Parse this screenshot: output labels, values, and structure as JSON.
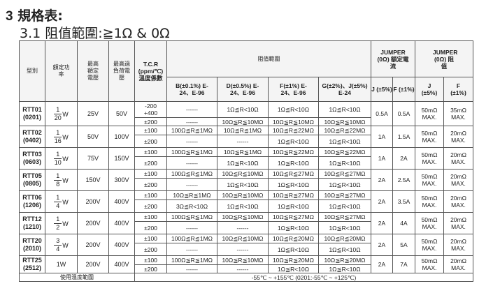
{
  "heading": {
    "number": "3",
    "title": "規格表:"
  },
  "subheading": "3.1 阻值範圍:≧1Ω & 0Ω",
  "table": {
    "headers": {
      "type": "型別",
      "rated_power": "額定功率",
      "max_rated_voltage": "最高額定電壓",
      "max_overload_voltage": "最高過負荷電壓",
      "tcr": "T.C.R (ppm/℃) 溫度係數",
      "resistance_range": "阻值範圍",
      "b": "B(±0.1%) E-24、E-96",
      "d": "D(±0.5%) E-24、E-96",
      "f": "F(±1%) E-24、E-96",
      "gj": "G(±2%)、J(±5%) E-24",
      "jumper_current": "JUMPER (0Ω) 額定電流",
      "jumper_resistance": "JUMPER (0Ω) 阻值",
      "jc_j": "J (±5%)",
      "jc_f": "F (±1%)",
      "jr_j": "J (±5%)",
      "jr_f": "F (±1%)"
    },
    "rows": [
      {
        "model": "RTT01",
        "size": "(0201)",
        "power_num": "1",
        "power_den": "20",
        "power_unit": "W",
        "v_rated": "25V",
        "v_overload": "50V",
        "sub": [
          {
            "tcr": "-200 +400",
            "b": "------",
            "d": "1Ω≦R<10Ω",
            "f": "1Ω≦R<10Ω",
            "g": "1Ω≦R<10Ω"
          },
          {
            "tcr": "±200",
            "b": "------",
            "d": "10Ω≦R≦10MΩ",
            "f": "10Ω≦R≦10MΩ",
            "g": "10Ω≦R≦10MΩ"
          }
        ],
        "jc_j": "0.5A",
        "jc_f": "0.5A",
        "jr_j": "50mΩ MAX.",
        "jr_f": "35mΩ MAX."
      },
      {
        "model": "RTT02",
        "size": "(0402)",
        "power_num": "1",
        "power_den": "16",
        "power_unit": "W",
        "v_rated": "50V",
        "v_overload": "100V",
        "sub": [
          {
            "tcr": "±100",
            "b": "100Ω≦R≦1MΩ",
            "d": "10Ω≦R≦1MΩ",
            "f": "10Ω≦R≦22MΩ",
            "g": "10Ω≦R≦22MΩ"
          },
          {
            "tcr": "±200",
            "b": "------",
            "d": "------",
            "f": "1Ω≦R<10Ω",
            "g": "1Ω≦R<10Ω"
          }
        ],
        "jc_j": "1A",
        "jc_f": "1.5A",
        "jr_j": "50mΩ MAX.",
        "jr_f": "20mΩ MAX."
      },
      {
        "model": "RTT03",
        "size": "(0603)",
        "power_num": "1",
        "power_den": "10",
        "power_unit": "W",
        "v_rated": "75V",
        "v_overload": "150V",
        "sub": [
          {
            "tcr": "±100",
            "b": "100Ω≦R≦1MΩ",
            "d": "10Ω≦R≦1MΩ",
            "f": "10Ω≦R≦22MΩ",
            "g": "10Ω≦R≦22MΩ"
          },
          {
            "tcr": "±200",
            "b": "------",
            "d": "1Ω≦R<10Ω",
            "f": "1Ω≦R<10Ω",
            "g": "1Ω≦R<10Ω"
          }
        ],
        "jc_j": "1A",
        "jc_f": "2A",
        "jr_j": "50mΩ MAX.",
        "jr_f": "20mΩ MAX."
      },
      {
        "model": "RTT05",
        "size": "(0805)",
        "power_num": "1",
        "power_den": "8",
        "power_unit": "W",
        "v_rated": "150V",
        "v_overload": "300V",
        "sub": [
          {
            "tcr": "±100",
            "b": "100Ω≦R≦1MΩ",
            "d": "10Ω≦R≦10MΩ",
            "f": "10Ω≦R≦27MΩ",
            "g": "10Ω≦R≦27MΩ"
          },
          {
            "tcr": "±200",
            "b": "------",
            "d": "1Ω≦R<10Ω",
            "f": "1Ω≦R<10Ω",
            "g": "1Ω≦R<10Ω"
          }
        ],
        "jc_j": "2A",
        "jc_f": "2.5A",
        "jr_j": "50mΩ MAX.",
        "jr_f": "20mΩ MAX."
      },
      {
        "model": "RTT06",
        "size": "(1206)",
        "power_num": "1",
        "power_den": "4",
        "power_unit": "W",
        "v_rated": "200V",
        "v_overload": "400V",
        "sub": [
          {
            "tcr": "±100",
            "b": "10Ω≦R≦1MΩ",
            "d": "10Ω≦R≦10MΩ",
            "f": "10Ω≦R≦27MΩ",
            "g": "10Ω≦R≦27MΩ"
          },
          {
            "tcr": "±200",
            "b": "3Ω≦R<10Ω",
            "d": "1Ω≦R<10Ω",
            "f": "1Ω≦R<10Ω",
            "g": "1Ω≦R<10Ω"
          }
        ],
        "jc_j": "2A",
        "jc_f": "3.5A",
        "jr_j": "50mΩ MAX.",
        "jr_f": "20mΩ MAX."
      },
      {
        "model": "RTT12",
        "size": "(1210)",
        "power_num": "1",
        "power_den": "2",
        "power_unit": "W",
        "v_rated": "200V",
        "v_overload": "400V",
        "sub": [
          {
            "tcr": "±100",
            "b": "100Ω≦R≦1MΩ",
            "d": "10Ω≦R≦10MΩ",
            "f": "10Ω≦R≦27MΩ",
            "g": "10Ω≦R≦27MΩ"
          },
          {
            "tcr": "±200",
            "b": "------",
            "d": "------",
            "f": "1Ω≦R<10Ω",
            "g": "1Ω≦R<10Ω"
          }
        ],
        "jc_j": "2A",
        "jc_f": "4A",
        "jr_j": "50mΩ MAX.",
        "jr_f": "20mΩ MAX."
      },
      {
        "model": "RTT20",
        "size": "(2010)",
        "power_num": "3",
        "power_den": "4",
        "power_unit": "W",
        "v_rated": "200V",
        "v_overload": "400V",
        "sub": [
          {
            "tcr": "±100",
            "b": "100Ω≦R≦1MΩ",
            "d": "10Ω≦R≦10MΩ",
            "f": "10Ω≦R≦20MΩ",
            "g": "10Ω≦R≦20MΩ"
          },
          {
            "tcr": "±200",
            "b": "------",
            "d": "------",
            "f": "1Ω≦R<10Ω",
            "g": "1Ω≦R<10Ω"
          }
        ],
        "jc_j": "2A",
        "jc_f": "5A",
        "jr_j": "50mΩ MAX.",
        "jr_f": "20mΩ MAX."
      },
      {
        "model": "RTT25",
        "size": "(2512)",
        "power": "1W",
        "v_rated": "200V",
        "v_overload": "400V",
        "sub": [
          {
            "tcr": "±100",
            "b": "100Ω≦R≦1MΩ",
            "d": "10Ω≦R≦10MΩ",
            "f": "10Ω≦R≦20MΩ",
            "g": "10Ω≦R≦20MΩ"
          },
          {
            "tcr": "±200",
            "b": "------",
            "d": "------",
            "f": "1Ω≦R<10Ω",
            "g": "1Ω≦R<10Ω"
          }
        ],
        "jc_j": "2A",
        "jc_f": "7A",
        "jr_j": "50mΩ MAX.",
        "jr_f": "20mΩ MAX."
      }
    ],
    "footer": {
      "label": "使用溫度範圍",
      "value": "-55℃ ~ +155℃  (0201:-55℃ ~ +125℃)"
    }
  }
}
